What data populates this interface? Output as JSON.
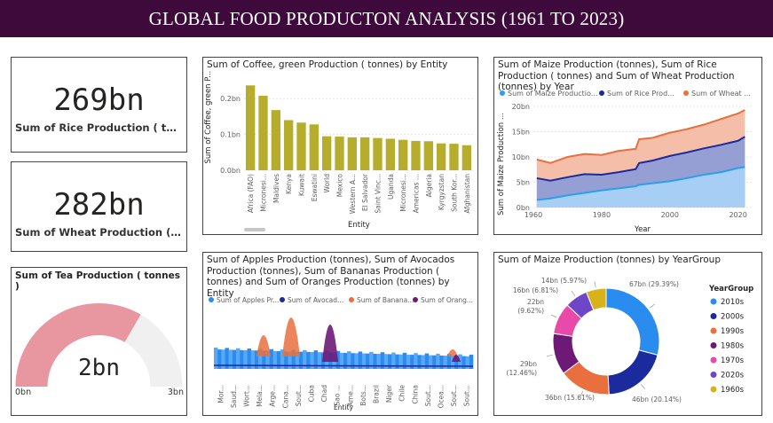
{
  "header": {
    "title": "GLOBAL FOOD PRODUCTON ANALYSIS (1961 TO 2023)"
  },
  "kpis": {
    "rice": {
      "value": "269bn",
      "label": "Sum of Rice  Production ( tonnes)"
    },
    "wheat": {
      "value": "282bn",
      "label": "Sum of Wheat Production (tonn..."
    }
  },
  "tea_gauge": {
    "title": "Sum of Tea Production ( tonnes )",
    "value_label": "2bn",
    "min_label": "0bn",
    "max_label": "3bn",
    "fraction": 0.667,
    "fill_color": "#e8969f",
    "track_color": "#f0f0f0"
  },
  "coffee": {
    "title": "Sum of Coffee, green Production ( tonnes) by Entity",
    "ylabel": "Sum of Coffee, green P...",
    "xlabel": "Entity",
    "bar_color": "#b5ad2b",
    "chart_data": {
      "type": "bar",
      "categories": [
        "Africa (FAO)",
        "Micronesi...",
        "Maldives",
        "Kenya",
        "Kuwait",
        "Eswatini",
        "World",
        "Mexico",
        "Western A...",
        "El Salvador",
        "Saint Vinc...",
        "Uganda",
        "Micronesi...",
        "Americas ...",
        "Algeria",
        "Kyrgyzstan",
        "South Kor...",
        "Afghanistan"
      ],
      "values": [
        0.237,
        0.208,
        0.168,
        0.14,
        0.133,
        0.128,
        0.095,
        0.094,
        0.092,
        0.092,
        0.09,
        0.088,
        0.085,
        0.082,
        0.081,
        0.075,
        0.074,
        0.07
      ],
      "yticks": [
        "0.0bn",
        "0.1bn",
        "0.2bn"
      ],
      "ylim": [
        0,
        0.26
      ]
    }
  },
  "cereals": {
    "title": "Sum of Maize Production (tonnes), Sum of Rice Production ( tonnes) and Sum of Wheat Production (tonnes) by Year",
    "ylabel": "Sum of Maize Production ...",
    "xlabel": "Year",
    "chart_data": {
      "type": "area",
      "x": [
        1961,
        1965,
        1970,
        1975,
        1980,
        1985,
        1990,
        1991,
        1995,
        2000,
        2005,
        2010,
        2015,
        2020,
        2022
      ],
      "series": [
        {
          "name": "Sum of Maize Productio...",
          "color": "#2b9ef0",
          "fill": "#a8d3f7",
          "values": [
            1.5,
            1.8,
            2.4,
            2.9,
            3.4,
            3.8,
            4.2,
            4.5,
            4.8,
            5.2,
            5.8,
            6.5,
            7.0,
            7.8,
            8.0
          ]
        },
        {
          "name": "Sum of Rice  Prod...",
          "color": "#1b2a9c",
          "fill": "#8c9bd8",
          "values": [
            5.8,
            5.3,
            6.0,
            6.6,
            6.5,
            7.0,
            7.6,
            8.8,
            9.3,
            10.2,
            10.9,
            11.7,
            12.4,
            13.2,
            14.0
          ]
        },
        {
          "name": "Sum of Wheat ...",
          "color": "#e9703e",
          "fill": "#f4b7a0",
          "values": [
            9.5,
            8.8,
            10.0,
            10.6,
            10.4,
            11.2,
            11.6,
            13.5,
            13.8,
            14.8,
            15.5,
            16.4,
            17.5,
            18.6,
            19.3
          ]
        }
      ],
      "xticks": [
        1960,
        1980,
        2000,
        2020
      ],
      "yticks": [
        "0bn",
        "5bn",
        "10bn",
        "15bn",
        "20bn"
      ],
      "xlim": [
        1960,
        2024
      ],
      "ylim": [
        0,
        20
      ]
    }
  },
  "fruits": {
    "title": "Sum of Apples Production (tonnes), Sum of Avocados Production (tonnes), Sum of Bananas Production ( tonnes) and Sum of Oranges Production (tonnes) by Entity",
    "xlabel": "Entity",
    "chart_data": {
      "type": "area",
      "categories": [
        "Mor...",
        "Saud...",
        "Wort...",
        "Mela...",
        "Arge...",
        "Cana...",
        "Sout...",
        "Cuba",
        "Chad",
        "Sao ...",
        "Ame...",
        "Bots...",
        "Brazil",
        "Niger",
        "Chile",
        "China",
        "Sout...",
        "Ocea...",
        "Sout...",
        "Sout..."
      ],
      "series": [
        {
          "name": "Sum of Apples Pr...",
          "color": "#2b8cf0",
          "fill": "#2b8cf0"
        },
        {
          "name": "Sum of Avocad...",
          "color": "#1b2a9c",
          "fill": "#1b2a9c"
        },
        {
          "name": "Sum of Banana...",
          "color": "#e9703e",
          "fill": "#e9703e"
        },
        {
          "name": "Sum of Orang...",
          "color": "#6d1a77",
          "fill": "#6d1a77"
        }
      ]
    }
  },
  "maize_donut": {
    "title": "Sum of Maize Production (tonnes) by YearGroup",
    "legend_title": "YearGroup",
    "chart_data": {
      "type": "pie",
      "categories": [
        "2010s",
        "2000s",
        "1990s",
        "1980s",
        "1970s",
        "2020s",
        "1960s"
      ],
      "values": [
        67,
        46,
        36,
        29,
        22,
        16,
        14
      ],
      "percents": [
        29.39,
        20.14,
        15.61,
        12.46,
        9.62,
        6.81,
        5.97
      ],
      "labels": [
        "67bn (29.39%)",
        "46bn (20.14%)",
        "36bn (15.61%)",
        "29bn\n(12.46%)",
        "22bn\n(9.62%)",
        "16bn (6.81%)",
        "14bn (5.97%)"
      ],
      "colors": [
        "#2b8cf0",
        "#1b2a9c",
        "#e9703e",
        "#6d1a77",
        "#e84aa9",
        "#7046c8",
        "#d8b21a"
      ]
    }
  }
}
